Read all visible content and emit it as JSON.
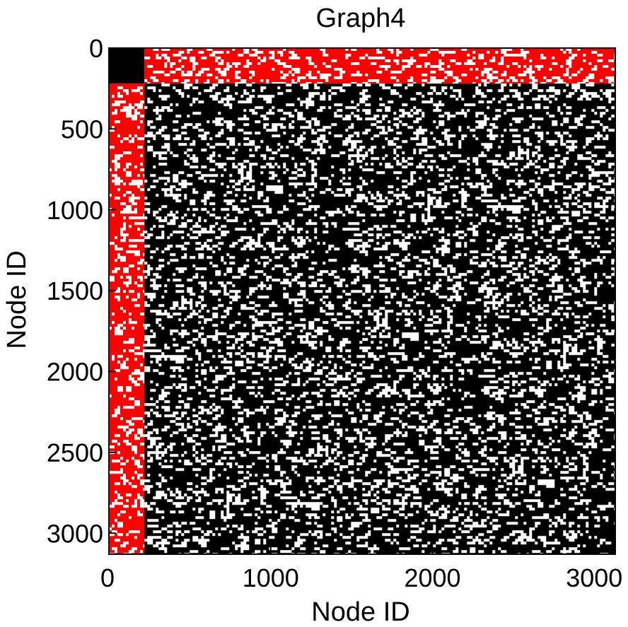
{
  "chart_data": {
    "type": "heatmap",
    "title": "Graph4",
    "xlabel": "Node ID",
    "ylabel": "Node ID",
    "xlim": [
      0,
      3130
    ],
    "ylim": [
      3130,
      0
    ],
    "xticks": [
      0,
      1000,
      2000,
      3000
    ],
    "yticks": [
      0,
      500,
      1000,
      1500,
      2000,
      2500,
      3000
    ],
    "xtick_labels": [
      "0",
      "1000",
      "2000",
      "3000"
    ],
    "ytick_labels": [
      "0",
      "500",
      "1000",
      "1500",
      "2000",
      "2500",
      "3000"
    ],
    "blocks": [
      {
        "name": "core block",
        "x_range": [
          0,
          220
        ],
        "y_range": [
          0,
          220
        ],
        "color": "#000000",
        "density": 1.0
      },
      {
        "name": "top band",
        "x_range": [
          220,
          3130
        ],
        "y_range": [
          0,
          220
        ],
        "color": "#ff0000",
        "density": 0.82
      },
      {
        "name": "left band",
        "x_range": [
          0,
          220
        ],
        "y_range": [
          220,
          3130
        ],
        "color": "#ff0000",
        "density": 0.82
      },
      {
        "name": "main body",
        "x_range": [
          220,
          3130
        ],
        "y_range": [
          220,
          3130
        ],
        "color": "#000000",
        "density": 0.8
      }
    ],
    "colors": {
      "core": "#000000",
      "periphery_link": "#ff0000",
      "periphery": "#000000",
      "background": "#ffffff"
    },
    "grid": false
  }
}
